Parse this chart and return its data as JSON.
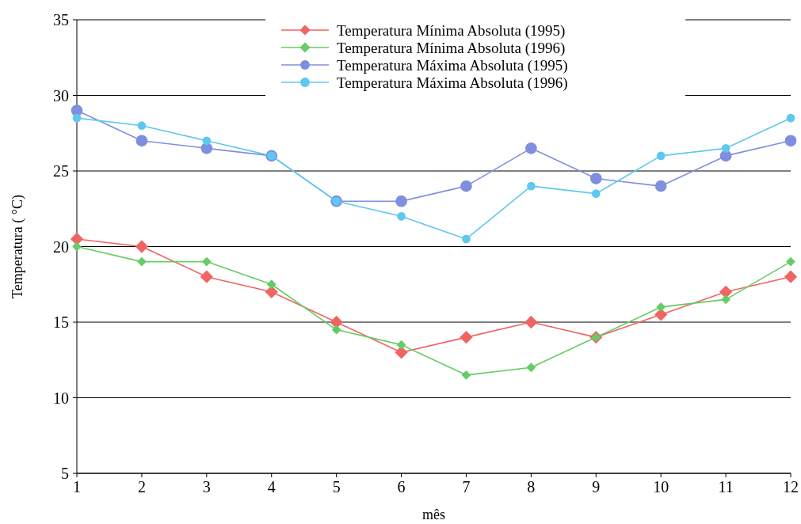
{
  "chart_data": {
    "type": "line",
    "xlabel": "mês",
    "ylabel": "Temperatura ( °C)",
    "x": [
      1,
      2,
      3,
      4,
      5,
      6,
      7,
      8,
      9,
      10,
      11,
      12
    ],
    "xlim": [
      1,
      12
    ],
    "xticks": [
      1,
      2,
      3,
      4,
      5,
      6,
      7,
      8,
      9,
      10,
      11,
      12
    ],
    "ylim": [
      5,
      35
    ],
    "yticks": [
      5,
      10,
      15,
      20,
      25,
      30,
      35
    ],
    "grid": "y",
    "legend": "top",
    "series": [
      {
        "name": "Temperatura Mínima Absoluta (1995)",
        "color": "#f06464",
        "marker": "diamond",
        "values": [
          20.5,
          20,
          18,
          17,
          15,
          13,
          14,
          15,
          14,
          15.5,
          17,
          18
        ]
      },
      {
        "name": "Temperatura Mínima Absoluta (1996)",
        "color": "#66cc66",
        "marker": "diamond",
        "values": [
          20,
          19,
          19,
          17.5,
          14.5,
          13.5,
          11.5,
          12,
          14,
          16,
          16.5,
          19
        ]
      },
      {
        "name": "Temperatura Máxima Absoluta (1995)",
        "color": "#7f8fdf",
        "marker": "circle",
        "values": [
          29,
          27,
          26.5,
          26,
          23,
          23,
          24,
          26.5,
          24.5,
          24,
          26,
          27
        ]
      },
      {
        "name": "Temperatura Máxima Absoluta (1996)",
        "color": "#5fc8f0",
        "marker": "circle",
        "values": [
          28.5,
          28,
          27,
          26,
          23,
          22,
          20.5,
          24,
          23.5,
          26,
          26.5,
          28.5
        ]
      }
    ]
  }
}
